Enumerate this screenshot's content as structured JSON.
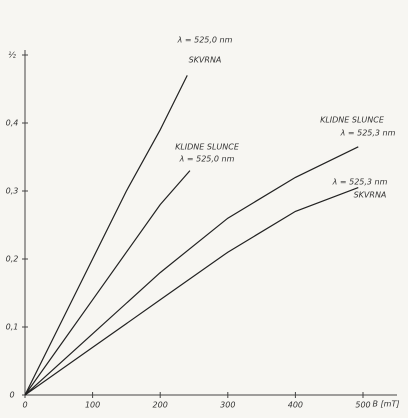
{
  "chart_data": {
    "type": "line",
    "x_label": "B [mT]",
    "xlim": [
      0,
      550
    ],
    "xticks": [
      0,
      100,
      200,
      300,
      400,
      500
    ],
    "ylim": [
      0,
      0.5
    ],
    "yticks": [
      0,
      {
        "value": 0.1,
        "label": "0,1"
      },
      {
        "value": 0.2,
        "label": "0,2"
      },
      {
        "value": 0.3,
        "label": "0,3"
      },
      {
        "value": 0.4,
        "label": "0,4"
      },
      {
        "value": 0.5,
        "label": "½"
      }
    ],
    "series": [
      {
        "color": "#222222",
        "x": [
          0,
          50,
          100,
          150,
          200,
          240
        ],
        "values": [
          0,
          0.1,
          0.2,
          0.3,
          0.39,
          0.47
        ]
      },
      {
        "color": "#222222",
        "x": [
          0,
          50,
          100,
          150,
          200,
          244
        ],
        "values": [
          0,
          0.07,
          0.14,
          0.21,
          0.28,
          0.33
        ]
      },
      {
        "color": "#222222",
        "x": [
          0,
          100,
          200,
          300,
          400,
          493
        ],
        "values": [
          0,
          0.09,
          0.18,
          0.26,
          0.32,
          0.365
        ]
      },
      {
        "color": "#222222",
        "x": [
          0,
          100,
          200,
          300,
          400,
          493
        ],
        "values": [
          0,
          0.07,
          0.14,
          0.21,
          0.27,
          0.305
        ]
      }
    ],
    "annotations": [
      "λ = 525,0 nm",
      "SKVRNA",
      "KLIDNE SLUNCE",
      "λ = 525,0 nm",
      "KLIDNE SLUNCE",
      "λ = 525,3 nm",
      "λ = 525,3 nm",
      "SKVRNA"
    ]
  }
}
